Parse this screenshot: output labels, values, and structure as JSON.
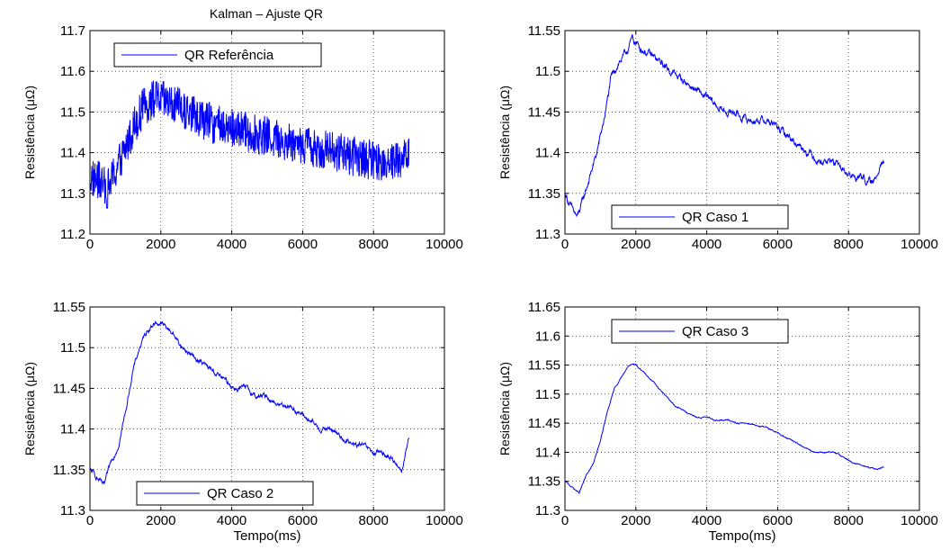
{
  "figure_title": "Kalman – Ajuste QR",
  "line_color": "#0000ff",
  "chart_data": [
    {
      "type": "line",
      "ylabel": "Resistência (μΩ)",
      "xlabel": "",
      "xlim": [
        0,
        10000
      ],
      "ylim": [
        11.2,
        11.7
      ],
      "xticks": [
        "0",
        "2000",
        "4000",
        "6000",
        "8000",
        "10000"
      ],
      "yticks": [
        "11.2",
        "11.3",
        "11.4",
        "11.5",
        "11.6",
        "11.7"
      ],
      "grid": true,
      "legend": "top-left",
      "noise": 0.038,
      "series": [
        {
          "name": "QR Referência",
          "x": [
            0,
            250,
            500,
            750,
            1000,
            1250,
            1500,
            1750,
            2000,
            2250,
            2500,
            3000,
            3500,
            4000,
            4500,
            5000,
            5500,
            6000,
            6500,
            7000,
            7500,
            8000,
            8500,
            9000
          ],
          "y": [
            11.34,
            11.33,
            11.31,
            11.36,
            11.41,
            11.47,
            11.51,
            11.53,
            11.53,
            11.52,
            11.51,
            11.49,
            11.47,
            11.46,
            11.45,
            11.44,
            11.43,
            11.42,
            11.41,
            11.4,
            11.39,
            11.38,
            11.38,
            11.39
          ]
        }
      ]
    },
    {
      "type": "line",
      "ylabel": "Resistência (μΩ)",
      "xlabel": "",
      "xlim": [
        0,
        10000
      ],
      "ylim": [
        11.3,
        11.55
      ],
      "xticks": [
        "0",
        "2000",
        "4000",
        "6000",
        "8000",
        "10000"
      ],
      "yticks": [
        "11.3",
        "11.35",
        "11.4",
        "11.45",
        "11.5",
        "11.55"
      ],
      "grid": true,
      "legend": "bottom-right",
      "noise": 0.006,
      "series": [
        {
          "name": "QR Caso 1",
          "x": [
            0,
            200,
            350,
            500,
            700,
            900,
            1100,
            1300,
            1500,
            1700,
            1900,
            2100,
            2400,
            2700,
            3000,
            3300,
            3600,
            3900,
            4200,
            4500,
            4800,
            5100,
            5400,
            5700,
            6000,
            6300,
            6600,
            6900,
            7200,
            7500,
            7800,
            8100,
            8400,
            8700,
            8900,
            9000
          ],
          "y": [
            11.35,
            11.33,
            11.32,
            11.34,
            11.37,
            11.4,
            11.44,
            11.49,
            11.51,
            11.52,
            11.54,
            11.53,
            11.52,
            11.51,
            11.5,
            11.49,
            11.48,
            11.47,
            11.46,
            11.45,
            11.45,
            11.44,
            11.44,
            11.44,
            11.43,
            11.42,
            11.41,
            11.4,
            11.39,
            11.39,
            11.38,
            11.37,
            11.37,
            11.36,
            11.39,
            11.39
          ]
        }
      ]
    },
    {
      "type": "line",
      "ylabel": "Resistência (μΩ)",
      "xlabel": "Tempo(ms)",
      "xlim": [
        0,
        10000
      ],
      "ylim": [
        11.3,
        11.55
      ],
      "xticks": [
        "0",
        "2000",
        "4000",
        "6000",
        "8000",
        "10000"
      ],
      "yticks": [
        "11.3",
        "11.35",
        "11.4",
        "11.45",
        "11.5",
        "11.55"
      ],
      "grid": true,
      "legend": "bottom-right",
      "noise": 0.004,
      "series": [
        {
          "name": "QR Caso 2",
          "x": [
            0,
            200,
            400,
            600,
            800,
            1000,
            1200,
            1400,
            1600,
            1800,
            2000,
            2300,
            2600,
            2900,
            3200,
            3500,
            3800,
            4100,
            4400,
            4700,
            5000,
            5300,
            5600,
            5900,
            6200,
            6500,
            6800,
            7100,
            7400,
            7700,
            8000,
            8300,
            8600,
            8800,
            9000
          ],
          "y": [
            11.35,
            11.34,
            11.33,
            11.36,
            11.38,
            11.42,
            11.47,
            11.5,
            11.52,
            11.53,
            11.53,
            11.52,
            11.5,
            11.49,
            11.48,
            11.47,
            11.46,
            11.45,
            11.45,
            11.44,
            11.44,
            11.43,
            11.43,
            11.42,
            11.41,
            11.4,
            11.4,
            11.39,
            11.38,
            11.38,
            11.37,
            11.37,
            11.36,
            11.35,
            11.39
          ]
        }
      ]
    },
    {
      "type": "line",
      "ylabel": "Resistência (μΩ)",
      "xlabel": "Tempo(ms)",
      "xlim": [
        0,
        10000
      ],
      "ylim": [
        11.3,
        11.65
      ],
      "xticks": [
        "0",
        "2000",
        "4000",
        "6000",
        "8000",
        "10000"
      ],
      "yticks": [
        "11.3",
        "11.35",
        "11.4",
        "11.45",
        "11.5",
        "11.55",
        "11.6",
        "11.65"
      ],
      "grid": true,
      "legend": "top-left",
      "noise": 0.0015,
      "series": [
        {
          "name": "QR Caso 3",
          "x": [
            0,
            200,
            400,
            600,
            800,
            1000,
            1200,
            1400,
            1600,
            1800,
            2000,
            2200,
            2500,
            2800,
            3100,
            3400,
            3700,
            4000,
            4300,
            4600,
            4900,
            5200,
            5500,
            5800,
            6100,
            6400,
            6700,
            7000,
            7300,
            7600,
            7900,
            8200,
            8500,
            8800,
            9000
          ],
          "y": [
            11.35,
            11.34,
            11.33,
            11.36,
            11.38,
            11.42,
            11.47,
            11.51,
            11.53,
            11.55,
            11.55,
            11.54,
            11.52,
            11.5,
            11.48,
            11.47,
            11.46,
            11.46,
            11.455,
            11.455,
            11.45,
            11.45,
            11.445,
            11.44,
            11.43,
            11.42,
            11.41,
            11.4,
            11.4,
            11.4,
            11.39,
            11.38,
            11.375,
            11.37,
            11.375
          ]
        }
      ]
    }
  ]
}
